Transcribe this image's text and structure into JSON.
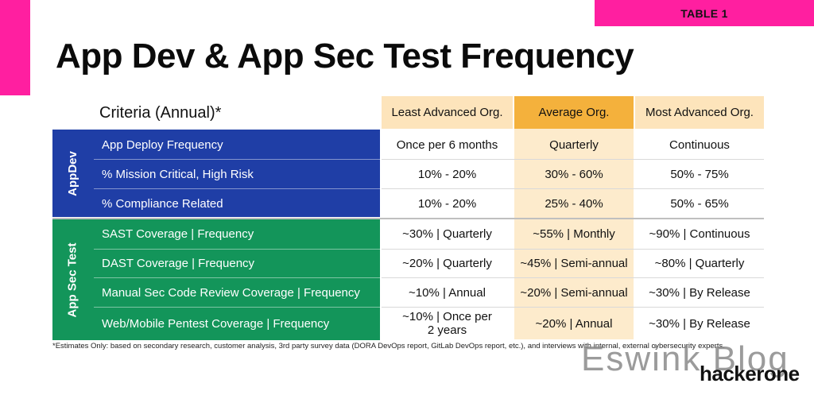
{
  "tag": "TABLE 1",
  "title": "App Dev & App Sec Test Frequency",
  "criteria_header": "Criteria (Annual)*",
  "columns": {
    "least": "Least Advanced Org.",
    "average": "Average Org.",
    "most": "Most Advanced Org."
  },
  "groups": {
    "appdev": "AppDev",
    "appsec": "App Sec Test"
  },
  "rows": [
    {
      "criteria": "App Deploy Frequency",
      "least": "Once per 6 months",
      "average": "Quarterly",
      "most": "Continuous"
    },
    {
      "criteria": "% Mission Critical, High Risk",
      "least": "10% - 20%",
      "average": "30% - 60%",
      "most": "50% - 75%"
    },
    {
      "criteria": "% Compliance Related",
      "least": "10% - 20%",
      "average": "25% - 40%",
      "most": "50% - 65%"
    },
    {
      "criteria": "SAST Coverage | Frequency",
      "least": "~30% | Quarterly",
      "average": "~55% | Monthly",
      "most": "~90% | Continuous"
    },
    {
      "criteria": "DAST Coverage | Frequency",
      "least": "~20% | Quarterly",
      "average": "~45% | Semi-annual",
      "most": "~80% | Quarterly"
    },
    {
      "criteria": "Manual Sec Code Review Coverage | Frequency",
      "least": "~10% | Annual",
      "average": "~20% | Semi-annual",
      "most": "~30% | By Release"
    },
    {
      "criteria": "Web/Mobile Pentest Coverage | Frequency",
      "least": "~10% | Once per 2 years",
      "average": "~20% | Annual",
      "most": "~30% | By Release"
    }
  ],
  "footnote": "*Estimates Only: based on secondary research, customer analysis, 3rd party survey data (DORA DevOps report, GitLab DevOps report, etc.), and interviews with internal, external cybersecurity experts.",
  "watermark": "Eswink Blog",
  "brand": "hackerone"
}
